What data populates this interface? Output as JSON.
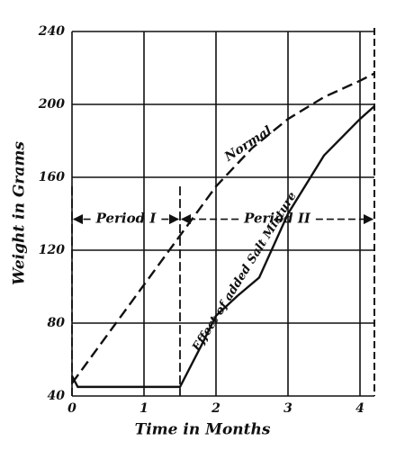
{
  "chart_data": {
    "type": "line",
    "x_label": "Time in Months",
    "y_label": "Weight in Grams",
    "xlim": [
      0,
      4.2
    ],
    "ylim": [
      40,
      240
    ],
    "xticks": [
      0,
      1,
      2,
      3,
      4
    ],
    "yticks": [
      40,
      80,
      120,
      160,
      200,
      240
    ],
    "grid": true,
    "series": [
      {
        "name": "Normal",
        "color": "#111111",
        "dashed": true,
        "x": [
          0,
          0.5,
          1,
          1.5,
          2,
          2.5,
          3,
          3.5,
          4,
          4.2
        ],
        "values": [
          47,
          74,
          101,
          128,
          155,
          176,
          192,
          204,
          213,
          217
        ]
      },
      {
        "name": "Effect of added Salt Mixture",
        "color": "#111111",
        "dashed": false,
        "x": [
          0,
          0.08,
          0.5,
          1,
          1.5,
          1.8,
          2,
          2.3,
          2.6,
          3,
          3.5,
          4,
          4.2
        ],
        "values": [
          51,
          45,
          45,
          45,
          45,
          68,
          84,
          95,
          105,
          140,
          172,
          192,
          199
        ]
      }
    ],
    "periods": [
      {
        "label": "Period I",
        "start": 0,
        "end": 1.5,
        "level": 137
      },
      {
        "label": "Period II",
        "start": 1.5,
        "end": 4.2,
        "level": 137
      }
    ]
  }
}
